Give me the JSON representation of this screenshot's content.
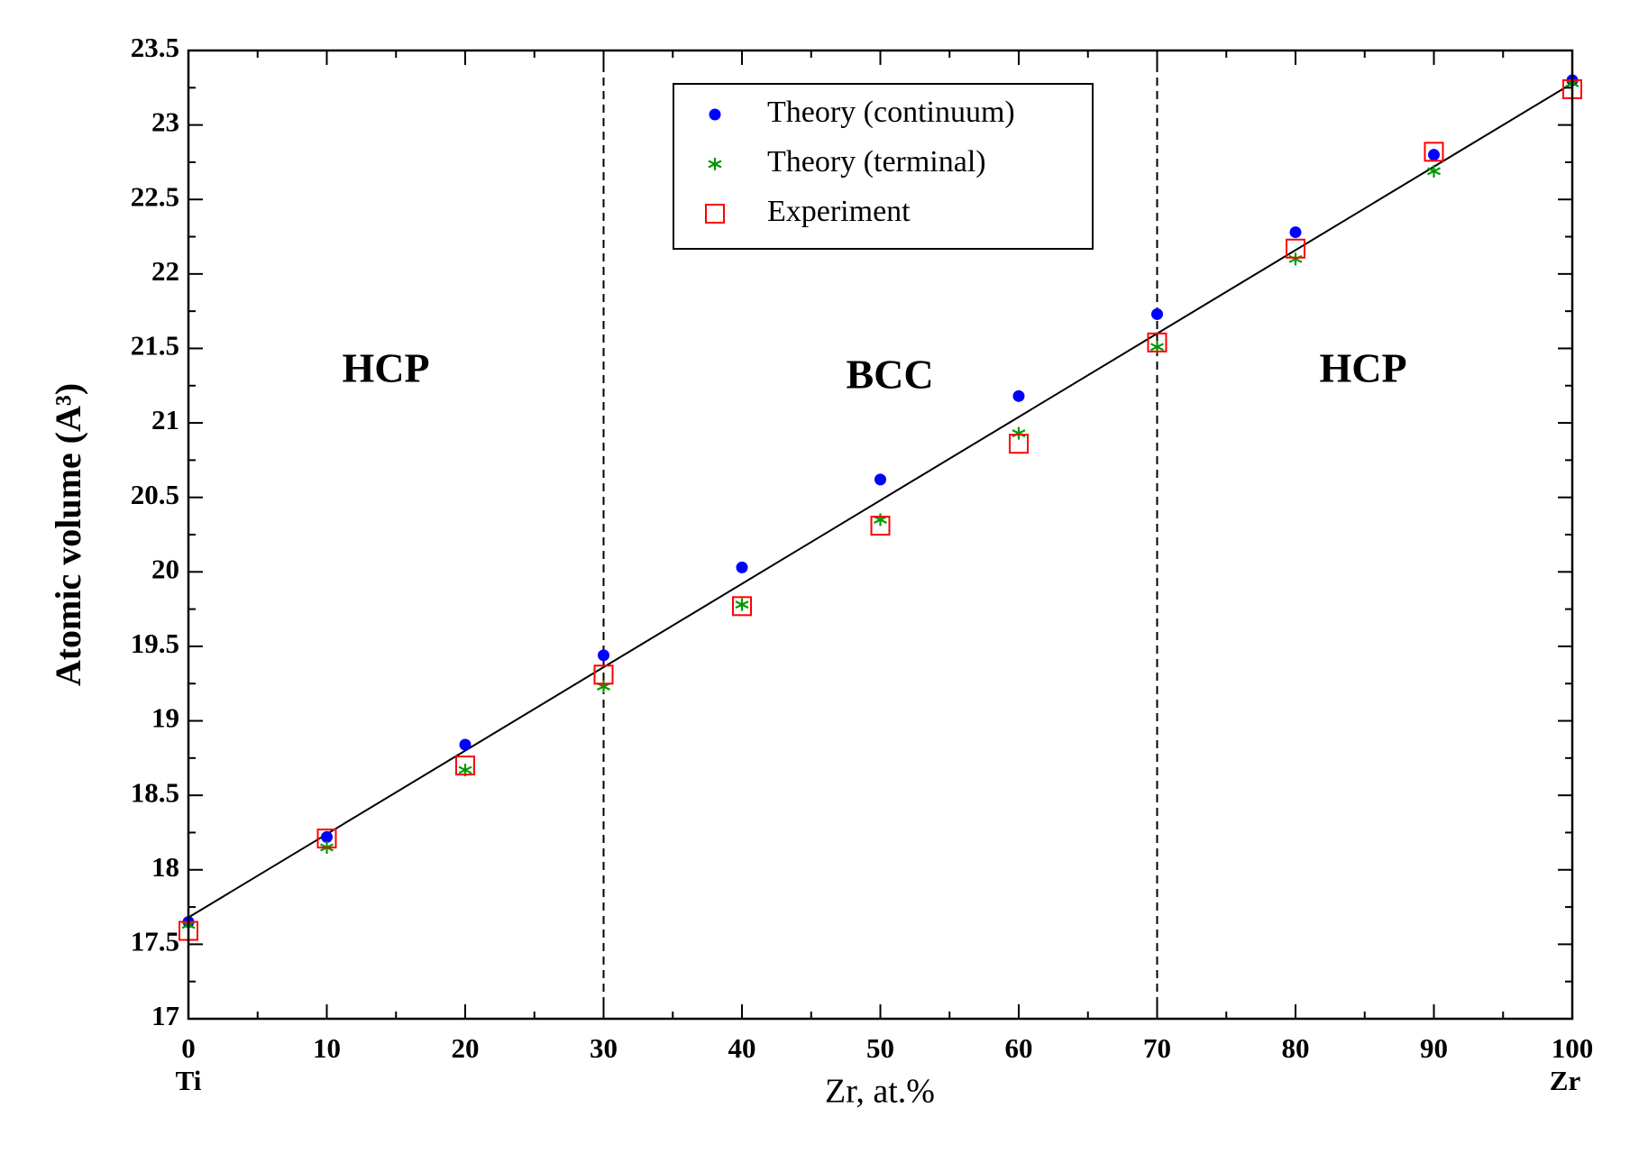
{
  "chart_data": {
    "type": "scatter",
    "x_label": "Zr, at.%",
    "y_label": "Atomic volume (A³)",
    "x": [
      0,
      10,
      20,
      30,
      40,
      50,
      60,
      70,
      80,
      90,
      100
    ],
    "series": [
      {
        "name": "Theory (continuum)",
        "color": "#0000ff",
        "marker": "circle",
        "values": [
          17.65,
          18.22,
          18.84,
          19.44,
          20.03,
          20.62,
          21.18,
          21.73,
          22.28,
          22.8,
          23.3
        ]
      },
      {
        "name": "Theory (terminal)",
        "color": "#009900",
        "marker": "asterisk",
        "values": [
          17.63,
          18.15,
          18.67,
          19.23,
          19.78,
          20.35,
          20.93,
          21.51,
          22.1,
          22.69,
          23.28
        ]
      },
      {
        "name": "Experiment",
        "color": "#ff0000",
        "marker": "square",
        "values": [
          17.59,
          18.21,
          18.7,
          19.31,
          19.77,
          20.31,
          20.86,
          21.54,
          22.17,
          22.82,
          23.24
        ]
      }
    ],
    "fit_line": {
      "x": [
        0,
        100
      ],
      "y": [
        17.68,
        23.28
      ],
      "color": "#000000"
    },
    "phase_boundaries": [
      30,
      70
    ],
    "region_labels": [
      "HCP",
      "BCC",
      "HCP"
    ],
    "x_end_labels": [
      "Ti",
      "Zr"
    ],
    "xlim": [
      0,
      100
    ],
    "ylim": [
      17,
      23.5
    ],
    "xticks": [
      0,
      10,
      20,
      30,
      40,
      50,
      60,
      70,
      80,
      90,
      100
    ],
    "yticks": [
      17,
      17.5,
      18,
      18.5,
      19,
      19.5,
      20,
      20.5,
      21,
      21.5,
      22,
      22.5,
      23,
      23.5
    ],
    "legend": "upper center"
  }
}
